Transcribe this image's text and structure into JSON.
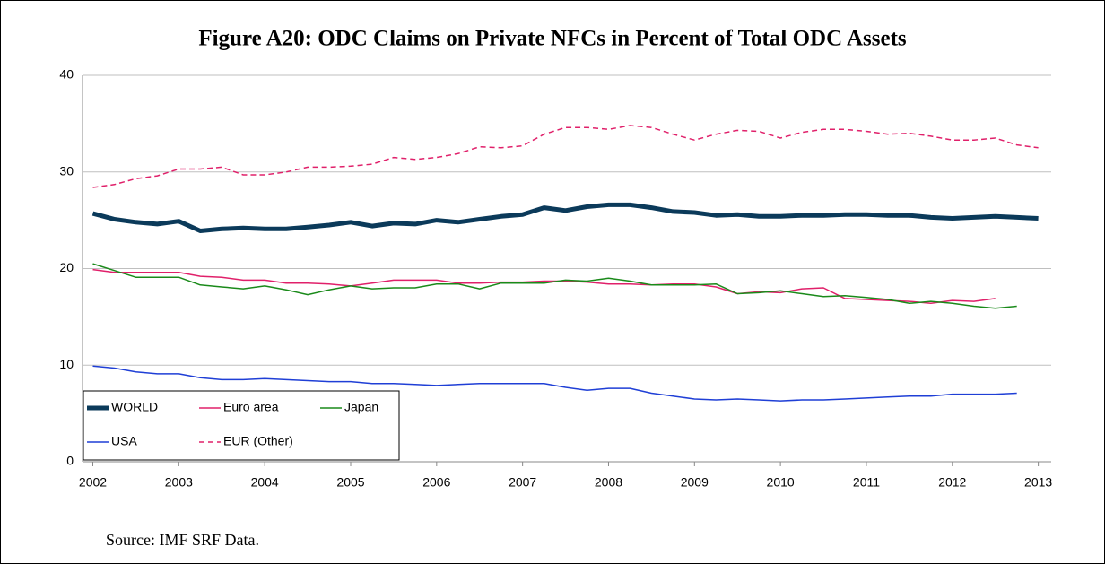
{
  "chart_data": {
    "type": "line",
    "title": "Figure A20: ODC Claims on Private NFCs in Percent of Total ODC Assets",
    "source": "Source: IMF SRF Data.",
    "x": [
      2002,
      2002.25,
      2002.5,
      2002.75,
      2003,
      2003.25,
      2003.5,
      2003.75,
      2004,
      2004.25,
      2004.5,
      2004.75,
      2005,
      2005.25,
      2005.5,
      2005.75,
      2006,
      2006.25,
      2006.5,
      2006.75,
      2007,
      2007.25,
      2007.5,
      2007.75,
      2008,
      2008.25,
      2008.5,
      2008.75,
      2009,
      2009.25,
      2009.5,
      2009.75,
      2010,
      2010.25,
      2010.5,
      2010.75,
      2011,
      2011.25,
      2011.5,
      2011.75,
      2012,
      2012.25,
      2012.5,
      2012.75,
      2013
    ],
    "series": [
      {
        "name": "WORLD",
        "color": "#0b3a5a",
        "width": 5,
        "dashed": false,
        "values": [
          25.7,
          25.1,
          24.8,
          24.6,
          24.9,
          23.9,
          24.1,
          24.2,
          24.1,
          24.1,
          24.3,
          24.5,
          24.8,
          24.4,
          24.7,
          24.6,
          25.0,
          24.8,
          25.1,
          25.4,
          25.6,
          26.3,
          26.0,
          26.4,
          26.6,
          26.6,
          26.3,
          25.9,
          25.8,
          25.5,
          25.6,
          25.4,
          25.4,
          25.5,
          25.5,
          25.6,
          25.6,
          25.5,
          25.5,
          25.3,
          25.2,
          25.3,
          25.4,
          25.3,
          25.2
        ]
      },
      {
        "name": "Euro area",
        "color": "#e0206a",
        "width": 1.5,
        "dashed": false,
        "values": [
          19.9,
          19.6,
          19.6,
          19.6,
          19.6,
          19.2,
          19.1,
          18.8,
          18.8,
          18.5,
          18.5,
          18.4,
          18.2,
          18.5,
          18.8,
          18.8,
          18.8,
          18.5,
          18.5,
          18.6,
          18.6,
          18.7,
          18.7,
          18.6,
          18.4,
          18.4,
          18.3,
          18.4,
          18.4,
          18.1,
          17.4,
          17.6,
          17.5,
          17.9,
          18.0,
          16.9,
          16.8,
          16.7,
          16.6,
          16.4,
          16.7,
          16.6,
          16.9,
          null,
          null
        ]
      },
      {
        "name": "Japan",
        "color": "#1a8a1a",
        "width": 1.5,
        "dashed": false,
        "values": [
          20.5,
          19.8,
          19.1,
          19.1,
          19.1,
          18.3,
          18.1,
          17.9,
          18.2,
          17.8,
          17.3,
          17.8,
          18.2,
          17.9,
          18.0,
          18.0,
          18.4,
          18.4,
          17.9,
          18.5,
          18.5,
          18.5,
          18.8,
          18.7,
          19.0,
          18.7,
          18.3,
          18.3,
          18.3,
          18.4,
          17.4,
          17.5,
          17.7,
          17.4,
          17.1,
          17.2,
          17.0,
          16.8,
          16.4,
          16.6,
          16.4,
          16.1,
          15.9,
          16.1,
          null
        ]
      },
      {
        "name": "USA",
        "color": "#1f3fd6",
        "width": 1.5,
        "dashed": false,
        "values": [
          9.9,
          9.7,
          9.3,
          9.1,
          9.1,
          8.7,
          8.5,
          8.5,
          8.6,
          8.5,
          8.4,
          8.3,
          8.3,
          8.1,
          8.1,
          8.0,
          7.9,
          8.0,
          8.1,
          8.1,
          8.1,
          8.1,
          7.7,
          7.4,
          7.6,
          7.6,
          7.1,
          6.8,
          6.5,
          6.4,
          6.5,
          6.4,
          6.3,
          6.4,
          6.4,
          6.5,
          6.6,
          6.7,
          6.8,
          6.8,
          7.0,
          7.0,
          7.0,
          7.1,
          null
        ]
      },
      {
        "name": "EUR (Other)",
        "color": "#e0206a",
        "width": 1.5,
        "dashed": true,
        "values": [
          28.4,
          28.7,
          29.3,
          29.6,
          30.3,
          30.3,
          30.5,
          29.7,
          29.7,
          30.0,
          30.5,
          30.5,
          30.6,
          30.8,
          31.5,
          31.3,
          31.5,
          31.9,
          32.6,
          32.5,
          32.7,
          33.9,
          34.6,
          34.6,
          34.4,
          34.8,
          34.6,
          33.9,
          33.3,
          33.9,
          34.3,
          34.2,
          33.5,
          34.1,
          34.4,
          34.4,
          34.2,
          33.9,
          34.0,
          33.7,
          33.3,
          33.3,
          33.5,
          32.8,
          32.5
        ]
      }
    ],
    "xlim": [
      2001.88,
      2013.15
    ],
    "xticks": [
      2002,
      2003,
      2004,
      2005,
      2006,
      2007,
      2008,
      2009,
      2010,
      2011,
      2012,
      2013
    ],
    "ylim": [
      0,
      40
    ],
    "yticks": [
      0,
      10,
      20,
      30,
      40
    ],
    "grid": true,
    "legend": "lower left"
  }
}
